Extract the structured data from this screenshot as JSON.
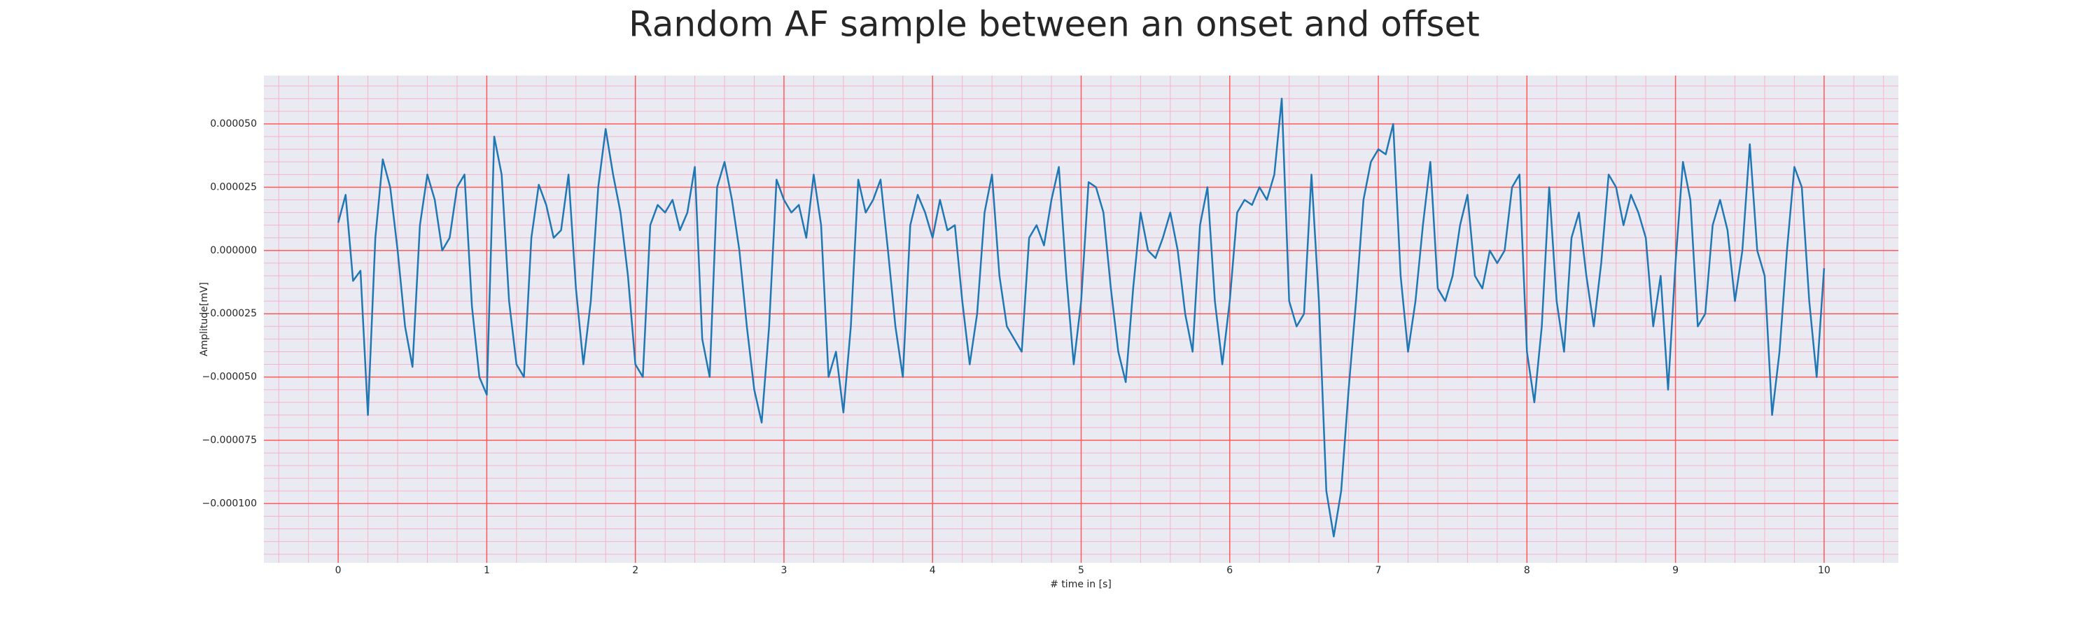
{
  "chart_data": {
    "type": "line",
    "title": "Random AF sample between an onset and offset",
    "xlabel": "# time in [s]",
    "ylabel": "Amplitude[mV]",
    "x": [
      0,
      0.05,
      0.1,
      0.15,
      0.2,
      0.25,
      0.3,
      0.35,
      0.4,
      0.45,
      0.5,
      0.55,
      0.6,
      0.65,
      0.7,
      0.75,
      0.8,
      0.85,
      0.9,
      0.95,
      1,
      1.05,
      1.1,
      1.15,
      1.2,
      1.25,
      1.3,
      1.35,
      1.4,
      1.45,
      1.5,
      1.55,
      1.6,
      1.65,
      1.7,
      1.75,
      1.8,
      1.85,
      1.9,
      1.95,
      2,
      2.05,
      2.1,
      2.15,
      2.2,
      2.25,
      2.3,
      2.35,
      2.4,
      2.45,
      2.5,
      2.55,
      2.6,
      2.65,
      2.7,
      2.75,
      2.8,
      2.85,
      2.9,
      2.95,
      3,
      3.05,
      3.1,
      3.15,
      3.2,
      3.25,
      3.3,
      3.35,
      3.4,
      3.45,
      3.5,
      3.55,
      3.6,
      3.65,
      3.7,
      3.75,
      3.8,
      3.85,
      3.9,
      3.95,
      4,
      4.05,
      4.1,
      4.15,
      4.2,
      4.25,
      4.3,
      4.35,
      4.4,
      4.45,
      4.5,
      4.55,
      4.6,
      4.65,
      4.7,
      4.75,
      4.8,
      4.85,
      4.9,
      4.95,
      5,
      5.05,
      5.1,
      5.15,
      5.2,
      5.25,
      5.3,
      5.35,
      5.4,
      5.45,
      5.5,
      5.55,
      5.6,
      5.65,
      5.7,
      5.75,
      5.8,
      5.85,
      5.9,
      5.95,
      6,
      6.05,
      6.1,
      6.15,
      6.2,
      6.25,
      6.3,
      6.35,
      6.4,
      6.45,
      6.5,
      6.55,
      6.6,
      6.65,
      6.7,
      6.75,
      6.8,
      6.85,
      6.9,
      6.95,
      7,
      7.05,
      7.1,
      7.15,
      7.2,
      7.25,
      7.3,
      7.35,
      7.4,
      7.45,
      7.5,
      7.55,
      7.6,
      7.65,
      7.7,
      7.75,
      7.8,
      7.85,
      7.9,
      7.95,
      8,
      8.05,
      8.1,
      8.15,
      8.2,
      8.25,
      8.3,
      8.35,
      8.4,
      8.45,
      8.5,
      8.55,
      8.6,
      8.65,
      8.7,
      8.75,
      8.8,
      8.85,
      8.9,
      8.95,
      9,
      9.05,
      9.1,
      9.15,
      9.2,
      9.25,
      9.3,
      9.35,
      9.4,
      9.45,
      9.5,
      9.55,
      9.6,
      9.65,
      9.7,
      9.75,
      9.8,
      9.85,
      9.9,
      9.95,
      10
    ],
    "series": [
      {
        "color": "#1f77b4",
        "values": [
          1.1e-05,
          2.2e-05,
          -1.2e-05,
          -8e-06,
          -6.5e-05,
          5e-06,
          3.6e-05,
          2.5e-05,
          0,
          -3e-05,
          -4.6e-05,
          1e-05,
          3e-05,
          2e-05,
          0,
          5e-06,
          2.5e-05,
          3e-05,
          -2.2e-05,
          -5e-05,
          -5.7e-05,
          4.5e-05,
          3e-05,
          -2e-05,
          -4.5e-05,
          -5e-05,
          5e-06,
          2.6e-05,
          1.8e-05,
          5e-06,
          8e-06,
          3e-05,
          -1.5e-05,
          -4.5e-05,
          -2e-05,
          2.5e-05,
          4.8e-05,
          3e-05,
          1.5e-05,
          -1e-05,
          -4.5e-05,
          -5e-05,
          1e-05,
          1.8e-05,
          1.5e-05,
          2e-05,
          8e-06,
          1.5e-05,
          3.3e-05,
          -3.5e-05,
          -5e-05,
          2.5e-05,
          3.5e-05,
          2e-05,
          0,
          -3e-05,
          -5.5e-05,
          -6.8e-05,
          -3e-05,
          2.8e-05,
          2e-05,
          1.5e-05,
          1.8e-05,
          5e-06,
          3e-05,
          1e-05,
          -5e-05,
          -4e-05,
          -6.4e-05,
          -3e-05,
          2.8e-05,
          1.5e-05,
          2e-05,
          2.8e-05,
          0,
          -3e-05,
          -5e-05,
          1e-05,
          2.2e-05,
          1.5e-05,
          5e-06,
          2e-05,
          8e-06,
          1e-05,
          -2e-05,
          -4.5e-05,
          -2.5e-05,
          1.5e-05,
          3e-05,
          -1e-05,
          -3e-05,
          -3.5e-05,
          -4e-05,
          5e-06,
          1e-05,
          2e-06,
          2e-05,
          3.3e-05,
          -1e-05,
          -4.5e-05,
          -2e-05,
          2.7e-05,
          2.5e-05,
          1.5e-05,
          -1.5e-05,
          -4e-05,
          -5.2e-05,
          -1.5e-05,
          1.5e-05,
          0,
          -3e-06,
          5e-06,
          1.5e-05,
          0,
          -2.5e-05,
          -4e-05,
          1e-05,
          2.5e-05,
          -2e-05,
          -4.5e-05,
          -2e-05,
          1.5e-05,
          2e-05,
          1.8e-05,
          2.5e-05,
          2e-05,
          3e-05,
          6e-05,
          -2e-05,
          -3e-05,
          -2.5e-05,
          3e-05,
          -2e-05,
          -9.5e-05,
          -0.000113,
          -9.5e-05,
          -5.5e-05,
          -2e-05,
          2e-05,
          3.5e-05,
          4e-05,
          3.8e-05,
          5e-05,
          -1e-05,
          -4e-05,
          -2e-05,
          1e-05,
          3.5e-05,
          -1.5e-05,
          -2e-05,
          -1e-05,
          1e-05,
          2.2e-05,
          -1e-05,
          -1.5e-05,
          0,
          -5e-06,
          0,
          2.5e-05,
          3e-05,
          -4e-05,
          -6e-05,
          -3e-05,
          2.5e-05,
          -2e-05,
          -4e-05,
          5e-06,
          1.5e-05,
          -1e-05,
          -3e-05,
          -5e-06,
          3e-05,
          2.5e-05,
          1e-05,
          2.2e-05,
          1.5e-05,
          5e-06,
          -3e-05,
          -1e-05,
          -5.5e-05,
          -5e-06,
          3.5e-05,
          2e-05,
          -3e-05,
          -2.5e-05,
          1e-05,
          2e-05,
          8e-06,
          -2e-05,
          0,
          4.2e-05,
          0,
          -1e-05,
          -6.5e-05,
          -4e-05,
          0,
          3.3e-05,
          2.5e-05,
          -2e-05,
          -5e-05,
          -7e-06
        ]
      }
    ],
    "xlim": [
      -0.5,
      10.5
    ],
    "ylim": [
      -0.0001234,
      6.91e-05
    ],
    "xticks": [
      0,
      1,
      2,
      3,
      4,
      5,
      6,
      7,
      8,
      9,
      10
    ],
    "yticks": [
      {
        "value": -0.0001,
        "label": "−0.000100"
      },
      {
        "value": -7.5e-05,
        "label": "−0.000075"
      },
      {
        "value": -5e-05,
        "label": "−0.000050"
      },
      {
        "value": -2.5e-05,
        "label": "−0.000025"
      },
      {
        "value": 0,
        "label": "0.000000"
      },
      {
        "value": 2.5e-05,
        "label": "0.000025"
      },
      {
        "value": 5e-05,
        "label": "0.000050"
      }
    ],
    "grid": true,
    "grid_color": "#ff5a5a",
    "minor_grid": true,
    "minor_grid_color": "#f5b5c8",
    "minor_divisions": 5,
    "background": "#eaeaf2"
  }
}
